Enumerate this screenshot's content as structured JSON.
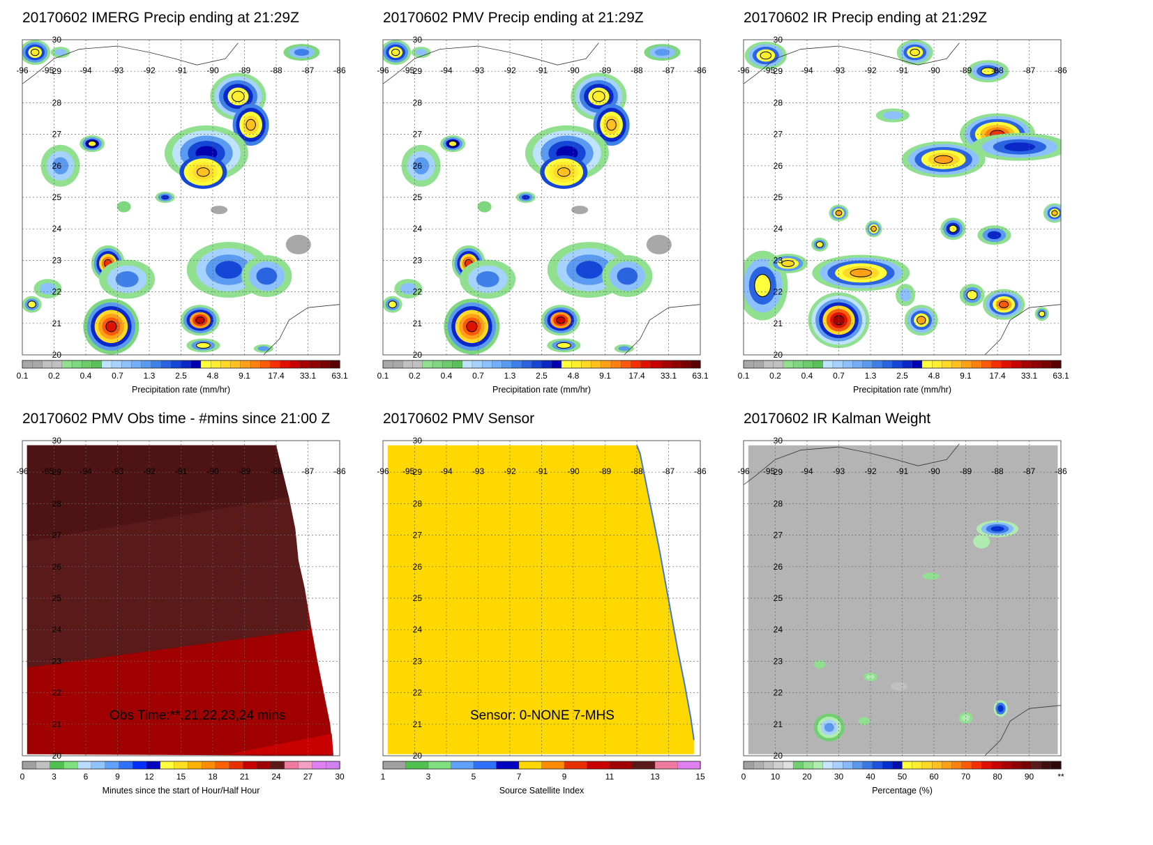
{
  "colors": {
    "precip_scale": [
      "#a8a8a8",
      "#a8a8a8",
      "#c0c0c0",
      "#c0c0c0",
      "#90e090",
      "#7ed77e",
      "#6ccc6c",
      "#5ac15a",
      "#bfe3ff",
      "#a6d2ff",
      "#8cc0ff",
      "#72aefa",
      "#5a9af0",
      "#3f80e8",
      "#2a64e0",
      "#1646d6",
      "#0a28c8",
      "#0000b0",
      "#ffff3c",
      "#ffee30",
      "#ffd828",
      "#ffc020",
      "#ffa018",
      "#ff8010",
      "#ff5a0a",
      "#f53005",
      "#e01000",
      "#c80000",
      "#a80000",
      "#900000",
      "#780000",
      "#5a0000"
    ],
    "obstime_scale": [
      "#a0a0a0",
      "#c0c0c0",
      "#50c050",
      "#80e080",
      "#b8dcff",
      "#90c4ff",
      "#60a0ff",
      "#3070ff",
      "#0030ff",
      "#0000c0",
      "#ffff40",
      "#ffe020",
      "#ffb000",
      "#ff8c00",
      "#ff6000",
      "#e83000",
      "#c80000",
      "#a00000",
      "#5a1a1a",
      "#f07aa0",
      "#f4a0c4",
      "#e080f0",
      "#d080f0"
    ],
    "sensor_scale": [
      "#a0a0a0",
      "#50c050",
      "#80e080",
      "#60a0ff",
      "#3070ff",
      "#0000c0",
      "#ffd800",
      "#ff8c00",
      "#e83000",
      "#c80000",
      "#a00000",
      "#5a1a1a",
      "#f07aa0",
      "#e080f0"
    ],
    "kalman_scale": [
      "#a0a0a0",
      "#b0b0b0",
      "#c0c0c0",
      "#d0d0d0",
      "#e0e0e0",
      "#70d070",
      "#90e090",
      "#b0ecb0",
      "#c8e4ff",
      "#a8d0ff",
      "#88baff",
      "#5a98f0",
      "#3a78e8",
      "#2050e0",
      "#0030d0",
      "#0010a8",
      "#ffff40",
      "#ffee30",
      "#ffd828",
      "#ffc020",
      "#ffa018",
      "#ff8010",
      "#ff5a0a",
      "#f53005",
      "#e01000",
      "#c80000",
      "#a80000",
      "#900000",
      "#780000",
      "#5a1a1a",
      "#401010",
      "#300808"
    ],
    "kalman_background": "#b4b4b4",
    "obs_dark": "#5a1a1a",
    "obs_red": "#a00000",
    "obs_bright": "#c80000",
    "sensor_fill": "#ffd800",
    "sensor_edge": "#3a78e8"
  },
  "panels": [
    {
      "title": "20170602 IMERG Precip ending at 21:29Z",
      "colorbar_label": "Precipitation rate (mm/hr)",
      "colorbar_ticks": [
        "0.1",
        "0.2",
        "0.4",
        "0.7",
        "1.3",
        "2.5",
        "4.8",
        "9.1",
        "17.4",
        "33.1",
        "63.1"
      ],
      "lon_labels": [
        "-96",
        "-95",
        "-94",
        "-93",
        "-92",
        "-91",
        "-90",
        "-89",
        "-88",
        "-87",
        "-86"
      ],
      "lat_labels": [
        "30",
        "29",
        "28",
        "27",
        "26",
        "25",
        "24",
        "23",
        "22",
        "21",
        "20"
      ],
      "field": "imerg"
    },
    {
      "title": "20170602 PMV Precip ending at 21:29Z",
      "colorbar_label": "Precipitation rate (mm/hr)",
      "colorbar_ticks": [
        "0.1",
        "0.2",
        "0.4",
        "0.7",
        "1.3",
        "2.5",
        "4.8",
        "9.1",
        "17.4",
        "33.1",
        "63.1"
      ],
      "lon_labels": [
        "-96",
        "-95",
        "-94",
        "-93",
        "-92",
        "-91",
        "-90",
        "-89",
        "-88",
        "-87",
        "-86"
      ],
      "lat_labels": [
        "30",
        "29",
        "28",
        "27",
        "26",
        "25",
        "24",
        "23",
        "22",
        "21",
        "20"
      ],
      "field": "pmv"
    },
    {
      "title": "20170602 IR Precip ending at 21:29Z",
      "colorbar_label": "Precipitation rate (mm/hr)",
      "colorbar_ticks": [
        "0.1",
        "0.2",
        "0.4",
        "0.7",
        "1.3",
        "2.5",
        "4.8",
        "9.1",
        "17.4",
        "33.1",
        "63.1"
      ],
      "lon_labels": [
        "-96",
        "-95",
        "-94",
        "-93",
        "-92",
        "-91",
        "-90",
        "-89",
        "-88",
        "-87",
        "-86"
      ],
      "lat_labels": [
        "30",
        "29",
        "28",
        "27",
        "26",
        "25",
        "24",
        "23",
        "22",
        "21",
        "20"
      ],
      "field": "ir"
    },
    {
      "title": "20170602 PMV Obs time - #mins since 21:00 Z",
      "colorbar_label": "Minutes since the start of Hour/Half Hour",
      "colorbar_ticks": [
        "0",
        "3",
        "6",
        "9",
        "12",
        "15",
        "18",
        "21",
        "24",
        "27",
        "30"
      ],
      "lon_labels": [
        "-96",
        "-95",
        "-94",
        "-93",
        "-92",
        "-91",
        "-90",
        "-89",
        "-88",
        "-87",
        "-86"
      ],
      "lat_labels": [
        "30",
        "29",
        "28",
        "27",
        "26",
        "25",
        "24",
        "23",
        "22",
        "21",
        "20"
      ],
      "annotation": "Obs Time:**,21,22,23,24 mins",
      "field": "obstime"
    },
    {
      "title": "20170602 PMV Sensor",
      "colorbar_label": "Source Satellite Index",
      "colorbar_ticks": [
        "1",
        "3",
        "5",
        "7",
        "9",
        "11",
        "13",
        "15"
      ],
      "lon_labels": [
        "-96",
        "-95",
        "-94",
        "-93",
        "-92",
        "-91",
        "-90",
        "-89",
        "-88",
        "-87",
        "-86"
      ],
      "lat_labels": [
        "30",
        "29",
        "28",
        "27",
        "26",
        "25",
        "24",
        "23",
        "22",
        "21",
        "20"
      ],
      "annotation": "Sensor:  0-NONE 7-MHS",
      "field": "sensor"
    },
    {
      "title": "20170602 IR Kalman Weight",
      "colorbar_label": "Percentage (%)",
      "colorbar_ticks": [
        "0",
        "10",
        "20",
        "30",
        "40",
        "50",
        "60",
        "70",
        "80",
        "90",
        "**"
      ],
      "lon_labels": [
        "-96",
        "-95",
        "-94",
        "-93",
        "-92",
        "-91",
        "-90",
        "-89",
        "-88",
        "-87",
        "-86"
      ],
      "lat_labels": [
        "30",
        "29",
        "28",
        "27",
        "26",
        "25",
        "24",
        "23",
        "22",
        "21",
        "20"
      ],
      "field": "kalman"
    }
  ],
  "chart_data": [
    {
      "type": "heatmap",
      "title": "20170602 IMERG Precip ending at 21:29Z",
      "xlabel": "",
      "ylabel": "",
      "xlim": [
        -96,
        -86
      ],
      "ylim": [
        20,
        30
      ],
      "colorbar": {
        "label": "Precipitation rate (mm/hr)",
        "ticks": [
          0.1,
          0.2,
          0.4,
          0.7,
          1.3,
          2.5,
          4.8,
          9.1,
          17.4,
          33.1,
          63.1
        ]
      },
      "features": [
        {
          "lon": -95.6,
          "lat": 29.6,
          "rate": 4.8
        },
        {
          "lon": -89.2,
          "lat": 28.2,
          "rate": 6
        },
        {
          "lon": -88.8,
          "lat": 27.3,
          "rate": 9
        },
        {
          "lon": -90.3,
          "lat": 25.8,
          "rate": 12
        },
        {
          "lon": -93.8,
          "lat": 26.7,
          "rate": 5
        },
        {
          "lon": -93.3,
          "lat": 22.9,
          "rate": 17
        },
        {
          "lon": -93.2,
          "lat": 20.9,
          "rate": 25
        },
        {
          "lon": -90.4,
          "lat": 21.1,
          "rate": 25
        },
        {
          "lon": -95.7,
          "lat": 21.6,
          "rate": 5
        }
      ]
    },
    {
      "type": "heatmap",
      "title": "20170602 PMV Precip ending at 21:29Z",
      "xlabel": "",
      "ylabel": "",
      "xlim": [
        -96,
        -86
      ],
      "ylim": [
        20,
        30
      ],
      "colorbar": {
        "label": "Precipitation rate (mm/hr)",
        "ticks": [
          0.1,
          0.2,
          0.4,
          0.7,
          1.3,
          2.5,
          4.8,
          9.1,
          17.4,
          33.1,
          63.1
        ]
      },
      "features": [
        {
          "lon": -95.6,
          "lat": 29.6,
          "rate": 4.8
        },
        {
          "lon": -89.2,
          "lat": 28.2,
          "rate": 6
        },
        {
          "lon": -88.8,
          "lat": 27.3,
          "rate": 9
        },
        {
          "lon": -90.3,
          "lat": 25.8,
          "rate": 12
        },
        {
          "lon": -93.8,
          "lat": 26.7,
          "rate": 5
        },
        {
          "lon": -93.3,
          "lat": 22.9,
          "rate": 17
        },
        {
          "lon": -93.2,
          "lat": 20.9,
          "rate": 25
        },
        {
          "lon": -90.4,
          "lat": 21.1,
          "rate": 25
        },
        {
          "lon": -95.7,
          "lat": 21.6,
          "rate": 5
        }
      ]
    },
    {
      "type": "heatmap",
      "title": "20170602 IR Precip ending at 21:29Z",
      "xlabel": "",
      "ylabel": "",
      "xlim": [
        -96,
        -86
      ],
      "ylim": [
        20,
        30
      ],
      "colorbar": {
        "label": "Precipitation rate (mm/hr)",
        "ticks": [
          0.1,
          0.2,
          0.4,
          0.7,
          1.3,
          2.5,
          4.8,
          9.1,
          17.4,
          33.1,
          63.1
        ]
      },
      "features": [
        {
          "lon": -88.0,
          "lat": 27.0,
          "rate": 25
        },
        {
          "lon": -90.0,
          "lat": 26.2,
          "rate": 15
        },
        {
          "lon": -92.3,
          "lat": 22.6,
          "rate": 12
        },
        {
          "lon": -93.0,
          "lat": 21.1,
          "rate": 40
        },
        {
          "lon": -87.8,
          "lat": 21.6,
          "rate": 15
        },
        {
          "lon": -90.4,
          "lat": 21.1,
          "rate": 10
        },
        {
          "lon": -95.3,
          "lat": 29.5,
          "rate": 8
        },
        {
          "lon": -90.6,
          "lat": 29.6,
          "rate": 6
        },
        {
          "lon": -86.2,
          "lat": 24.5,
          "rate": 6
        }
      ]
    },
    {
      "type": "heatmap",
      "title": "20170602 PMV Obs time - #mins since 21:00 Z",
      "xlabel": "",
      "ylabel": "",
      "xlim": [
        -96,
        -86
      ],
      "ylim": [
        20,
        30
      ],
      "colorbar": {
        "label": "Minutes since the start of Hour/Half Hour",
        "ticks": [
          0,
          3,
          6,
          9,
          12,
          15,
          18,
          21,
          24,
          27,
          30
        ]
      },
      "values_present_minutes": [
        21,
        22,
        23,
        24
      ],
      "annotation": "Obs Time:**,21,22,23,24 mins"
    },
    {
      "type": "heatmap",
      "title": "20170602 PMV Sensor",
      "xlabel": "",
      "ylabel": "",
      "xlim": [
        -96,
        -86
      ],
      "ylim": [
        20,
        30
      ],
      "colorbar": {
        "label": "Source Satellite Index",
        "ticks": [
          1,
          3,
          5,
          7,
          9,
          11,
          13,
          15
        ]
      },
      "values_present": [
        7
      ],
      "annotation": "Sensor:  0-NONE 7-MHS"
    },
    {
      "type": "heatmap",
      "title": "20170602 IR Kalman Weight",
      "xlabel": "",
      "ylabel": "",
      "xlim": [
        -96,
        -86
      ],
      "ylim": [
        20,
        30
      ],
      "colorbar": {
        "label": "Percentage (%)",
        "ticks": [
          "0",
          "10",
          "20",
          "30",
          "40",
          "50",
          "60",
          "70",
          "80",
          "90",
          "**"
        ]
      },
      "features": [
        {
          "lon": -88.0,
          "lat": 27.2,
          "weight": 45
        },
        {
          "lon": -93.3,
          "lat": 20.9,
          "weight": 33
        },
        {
          "lon": -87.9,
          "lat": 21.5,
          "weight": 42
        }
      ]
    }
  ]
}
